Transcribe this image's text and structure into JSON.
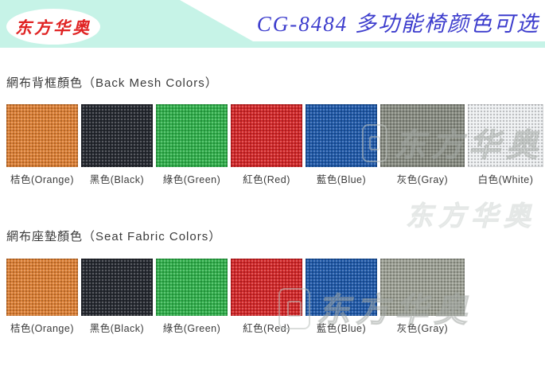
{
  "header": {
    "banner_color": "#c6f3e7",
    "logo_text": "东方华奥",
    "logo_color": "#e02323",
    "title": "CG-8484 多功能椅颜色可选",
    "title_color": "#3d3dcd"
  },
  "back_mesh": {
    "heading": "網布背框顏色（Back Mesh Colors）",
    "swatches": [
      {
        "label": "桔色(Orange)",
        "color": "#dd7f33"
      },
      {
        "label": "黑色(Black)",
        "color": "#24272f"
      },
      {
        "label": "綠色(Green)",
        "color": "#2fb04a"
      },
      {
        "label": "紅色(Red)",
        "color": "#d42627"
      },
      {
        "label": "藍色(Blue)",
        "color": "#1d58a9"
      },
      {
        "label": "灰色(Gray)",
        "color": "#888c82"
      },
      {
        "label": "白色(White)",
        "color": "#eef0f2"
      }
    ]
  },
  "seat_fabric": {
    "heading": "網布座墊顏色（Seat Fabric Colors）",
    "swatches": [
      {
        "label": "桔色(Orange)",
        "color": "#dd7f33"
      },
      {
        "label": "黑色(Black)",
        "color": "#24272f"
      },
      {
        "label": "綠色(Green)",
        "color": "#2fb04a"
      },
      {
        "label": "紅色(Red)",
        "color": "#d42627"
      },
      {
        "label": "藍色(Blue)",
        "color": "#1d58a9"
      },
      {
        "label": "灰色(Gray)",
        "color": "#9ca094"
      }
    ]
  },
  "watermark": {
    "text": "东方华奥"
  }
}
